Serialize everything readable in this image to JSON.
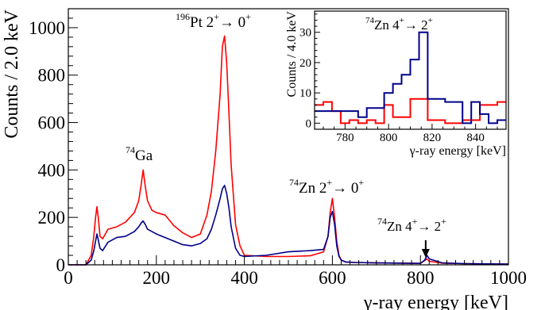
{
  "chart_data": [
    {
      "type": "line",
      "title": "",
      "xlabel": "γ-ray energy [keV]",
      "ylabel": "Counts / 2.0 keV",
      "xlim": [
        0,
        1000
      ],
      "ylim": [
        0,
        1080
      ],
      "xticks": [
        0,
        200,
        400,
        600,
        800,
        1000
      ],
      "yticks": [
        0,
        200,
        400,
        600,
        800,
        1000
      ],
      "grid": false,
      "series": [
        {
          "color": "#ff0000",
          "x": [
            0,
            40,
            52,
            58,
            62,
            65,
            68,
            72,
            78,
            90,
            110,
            130,
            150,
            160,
            165,
            170,
            175,
            180,
            190,
            200,
            220,
            240,
            260,
            280,
            300,
            315,
            325,
            335,
            345,
            350,
            355,
            360,
            365,
            370,
            380,
            390,
            400,
            450,
            500,
            550,
            580,
            590,
            595,
            600,
            605,
            610,
            615,
            620,
            630,
            650,
            700,
            800,
            810,
            815,
            820,
            850,
            900,
            1000
          ],
          "y": [
            0,
            0,
            40,
            120,
            200,
            245,
            200,
            120,
            110,
            150,
            160,
            180,
            220,
            270,
            330,
            400,
            330,
            270,
            230,
            220,
            210,
            165,
            135,
            115,
            130,
            210,
            310,
            480,
            720,
            920,
            965,
            850,
            640,
            420,
            170,
            80,
            40,
            35,
            35,
            38,
            55,
            120,
            220,
            280,
            200,
            100,
            40,
            20,
            12,
            10,
            8,
            6,
            18,
            25,
            15,
            7,
            5,
            3
          ]
        },
        {
          "color": "#00008b",
          "x": [
            0,
            40,
            52,
            58,
            62,
            65,
            68,
            72,
            78,
            90,
            110,
            130,
            150,
            160,
            165,
            170,
            175,
            180,
            190,
            200,
            220,
            240,
            260,
            280,
            300,
            315,
            325,
            335,
            345,
            350,
            355,
            360,
            365,
            370,
            380,
            390,
            400,
            450,
            500,
            550,
            580,
            590,
            595,
            600,
            605,
            610,
            615,
            620,
            630,
            650,
            700,
            800,
            810,
            815,
            820,
            850,
            900,
            1000
          ],
          "y": [
            0,
            0,
            20,
            60,
            100,
            130,
            105,
            70,
            60,
            95,
            115,
            120,
            140,
            160,
            175,
            185,
            170,
            150,
            140,
            130,
            115,
            100,
            85,
            80,
            90,
            110,
            150,
            210,
            280,
            320,
            335,
            300,
            240,
            160,
            70,
            40,
            35,
            40,
            55,
            60,
            65,
            120,
            200,
            225,
            170,
            80,
            35,
            20,
            12,
            10,
            8,
            6,
            20,
            40,
            25,
            8,
            5,
            3
          ]
        }
      ]
    },
    {
      "type": "line",
      "title": "",
      "xlabel": "γ-ray energy [keV]",
      "ylabel": "Counts / 4.0 keV",
      "xlim": [
        766,
        854
      ],
      "ylim": [
        -2,
        37
      ],
      "xticks": [
        780,
        800,
        820,
        840
      ],
      "yticks": [
        0,
        10,
        20,
        30
      ],
      "grid": false,
      "series": [
        {
          "color": "#ff0000",
          "step": true,
          "x": [
            766,
            770,
            774,
            778,
            782,
            786,
            790,
            794,
            798,
            802,
            806,
            810,
            814,
            818,
            822,
            826,
            830,
            834,
            838,
            842,
            846,
            850
          ],
          "y": [
            6,
            7,
            4,
            0,
            1,
            0,
            1,
            0,
            6,
            2,
            2,
            8,
            8,
            1,
            1,
            0,
            0,
            1,
            1,
            6,
            6,
            7
          ]
        },
        {
          "color": "#00008b",
          "step": true,
          "x": [
            766,
            770,
            774,
            778,
            782,
            786,
            790,
            794,
            798,
            802,
            806,
            810,
            814,
            818,
            822,
            826,
            830,
            834,
            838,
            842,
            846,
            850
          ],
          "y": [
            4,
            4,
            4,
            4,
            4,
            2,
            5,
            5,
            10,
            13,
            16,
            21,
            30,
            8,
            8,
            7,
            7,
            0,
            7,
            3,
            0,
            1
          ]
        }
      ]
    }
  ],
  "annotations": {
    "pt_mass": "196",
    "pt_element": "Pt",
    "pt_transition": " 2",
    "pt_final": " 0",
    "ga_mass": "74",
    "ga_element": "Ga",
    "zn_mass": "74",
    "zn_element": "Zn",
    "zn2_transition": " 2",
    "zn2_final": " 0",
    "zn4_transition": " 4",
    "zn4_final": " 2",
    "arrow_to": "→",
    "plus": "+",
    "ga_position": 170,
    "pt_position": 356,
    "zn2_position": 606,
    "zn4_position": 812
  }
}
